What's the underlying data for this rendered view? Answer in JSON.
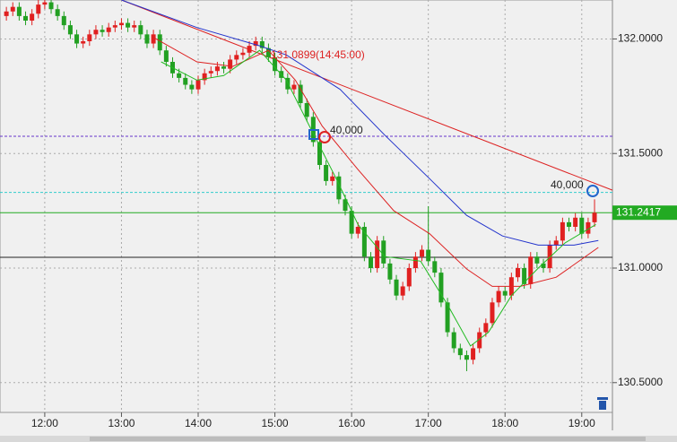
{
  "chart_data": {
    "type": "candlestick",
    "up_color": "#e02020",
    "down_color": "#22a022",
    "xlim": [
      685,
      1164
    ],
    "ylim": [
      130.37,
      132.17
    ],
    "grid": true,
    "xticks": [
      {
        "value": 720,
        "label": "12:00"
      },
      {
        "value": 780,
        "label": "13:00"
      },
      {
        "value": 840,
        "label": "14:00"
      },
      {
        "value": 900,
        "label": "15:00"
      },
      {
        "value": 960,
        "label": "16:00"
      },
      {
        "value": 1020,
        "label": "17:00"
      },
      {
        "value": 1080,
        "label": "18:00"
      },
      {
        "value": 1140,
        "label": "19:00"
      }
    ],
    "yticks": [
      {
        "value": 132,
        "label": "132.0000"
      },
      {
        "value": 131.5,
        "label": "131.5000"
      },
      {
        "value": 131,
        "label": "131.0000"
      },
      {
        "value": 130.5,
        "label": "130.5000"
      }
    ],
    "x": [
      690,
      695,
      700,
      705,
      710,
      715,
      720,
      725,
      730,
      735,
      740,
      745,
      750,
      755,
      760,
      765,
      770,
      775,
      780,
      785,
      790,
      795,
      800,
      805,
      810,
      815,
      820,
      825,
      830,
      835,
      840,
      845,
      850,
      855,
      860,
      865,
      870,
      875,
      880,
      885,
      890,
      895,
      900,
      905,
      910,
      915,
      920,
      925,
      930,
      935,
      940,
      945,
      950,
      955,
      960,
      965,
      970,
      975,
      980,
      985,
      990,
      995,
      1000,
      1005,
      1010,
      1015,
      1020,
      1025,
      1030,
      1035,
      1040,
      1045,
      1050,
      1055,
      1060,
      1065,
      1070,
      1075,
      1080,
      1085,
      1090,
      1095,
      1100,
      1105,
      1110,
      1115,
      1120,
      1125,
      1130,
      1135,
      1140,
      1145,
      1150
    ],
    "open": [
      132.1,
      132.12,
      132.14,
      132.1,
      132.08,
      132.11,
      132.15,
      132.16,
      132.13,
      132.1,
      132.06,
      132.02,
      131.98,
      131.99,
      132.02,
      132.04,
      132.03,
      132.05,
      132.06,
      132.07,
      132.05,
      132.06,
      132.02,
      131.98,
      132.02,
      131.95,
      131.9,
      131.85,
      131.83,
      131.8,
      131.78,
      131.82,
      131.85,
      131.86,
      131.88,
      131.87,
      131.91,
      131.93,
      131.94,
      131.97,
      131.99,
      131.96,
      131.92,
      131.86,
      131.83,
      131.78,
      131.8,
      131.72,
      131.66,
      131.55,
      131.45,
      131.38,
      131.4,
      131.3,
      131.25,
      131.15,
      131.18,
      131.05,
      131.0,
      131.12,
      131.02,
      130.95,
      130.88,
      130.92,
      131.0,
      131.05,
      131.08,
      131.03,
      130.98,
      130.85,
      130.72,
      130.65,
      130.62,
      130.6,
      130.65,
      130.72,
      130.76,
      130.85,
      130.9,
      130.88,
      130.96,
      131.0,
      130.93,
      131.05,
      131.02,
      131.0,
      131.1,
      131.12,
      131.2,
      131.18,
      131.22,
      131.15,
      131.2
    ],
    "high": [
      132.14,
      132.16,
      132.16,
      132.12,
      132.13,
      132.17,
      132.17,
      132.17,
      132.15,
      132.12,
      132.08,
      132.04,
      132.01,
      132.04,
      132.06,
      132.06,
      132.07,
      132.08,
      132.09,
      132.09,
      132.08,
      132.08,
      132.04,
      132.04,
      132.04,
      131.97,
      131.92,
      131.87,
      131.85,
      131.82,
      131.84,
      131.87,
      131.88,
      131.9,
      131.9,
      131.93,
      131.95,
      131.96,
      131.99,
      132.01,
      132.01,
      131.98,
      131.94,
      131.88,
      131.85,
      131.82,
      131.82,
      131.74,
      131.68,
      131.57,
      131.47,
      131.42,
      131.42,
      131.32,
      131.27,
      131.2,
      131.2,
      131.07,
      131.14,
      131.14,
      131.04,
      130.97,
      130.94,
      131.02,
      131.07,
      131.1,
      131.27,
      131.05,
      131.0,
      130.87,
      130.74,
      130.67,
      130.64,
      130.67,
      130.74,
      130.78,
      130.87,
      130.92,
      130.92,
      130.98,
      131.02,
      131.02,
      131.07,
      131.07,
      131.04,
      131.12,
      131.14,
      131.22,
      131.22,
      131.24,
      131.24,
      131.22,
      131.3
    ],
    "low": [
      132.08,
      132.1,
      132.08,
      132.06,
      132.06,
      132.09,
      132.13,
      132.11,
      132.08,
      132.04,
      132.0,
      131.96,
      131.96,
      131.97,
      132.0,
      132.01,
      132.01,
      132.03,
      132.04,
      132.03,
      132.03,
      132.0,
      131.96,
      131.96,
      131.93,
      131.88,
      131.83,
      131.81,
      131.78,
      131.76,
      131.76,
      131.8,
      131.83,
      131.84,
      131.85,
      131.85,
      131.89,
      131.91,
      131.92,
      131.95,
      131.94,
      131.9,
      131.84,
      131.81,
      131.76,
      131.76,
      131.7,
      131.64,
      131.53,
      131.43,
      131.36,
      131.36,
      131.28,
      131.23,
      131.13,
      131.13,
      131.03,
      130.98,
      130.98,
      131.0,
      130.93,
      130.86,
      130.86,
      130.9,
      130.98,
      131.03,
      131.01,
      130.96,
      130.83,
      130.7,
      130.63,
      130.6,
      130.55,
      130.58,
      130.63,
      130.7,
      130.74,
      130.83,
      130.86,
      130.86,
      130.94,
      130.91,
      130.91,
      131.0,
      130.98,
      130.98,
      131.08,
      131.1,
      131.16,
      131.16,
      131.13,
      131.13,
      131.18
    ],
    "close": [
      132.12,
      132.14,
      132.1,
      132.08,
      132.11,
      132.15,
      132.16,
      132.13,
      132.1,
      132.06,
      132.02,
      131.98,
      131.99,
      132.02,
      132.04,
      132.03,
      132.05,
      132.06,
      132.07,
      132.05,
      132.06,
      132.02,
      131.98,
      132.02,
      131.95,
      131.9,
      131.85,
      131.83,
      131.8,
      131.78,
      131.82,
      131.85,
      131.86,
      131.88,
      131.87,
      131.91,
      131.93,
      131.94,
      131.97,
      131.99,
      131.96,
      131.92,
      131.86,
      131.83,
      131.78,
      131.8,
      131.72,
      131.66,
      131.55,
      131.45,
      131.38,
      131.4,
      131.3,
      131.25,
      131.15,
      131.18,
      131.05,
      131.0,
      131.12,
      131.02,
      130.95,
      130.88,
      130.92,
      131.0,
      131.05,
      131.08,
      131.03,
      130.98,
      130.85,
      130.72,
      130.65,
      130.62,
      130.6,
      130.65,
      130.72,
      130.76,
      130.85,
      130.9,
      130.88,
      130.96,
      131.0,
      130.93,
      131.05,
      131.02,
      131.0,
      131.1,
      131.12,
      131.2,
      131.18,
      131.22,
      131.15,
      131.2,
      131.2417
    ],
    "series": [
      {
        "color": "#2233cc",
        "x": [
          780,
          839,
          888,
          909,
          951,
          986,
          1021,
          1050,
          1078,
          1106,
          1134,
          1153
        ],
        "values": [
          132.17,
          132.05,
          131.97,
          131.93,
          131.78,
          131.58,
          131.39,
          131.23,
          131.14,
          131.1,
          131.1,
          131.12
        ]
      },
      {
        "color": "#dd2222",
        "x": [
          804,
          839,
          867,
          895,
          916,
          937,
          965,
          993,
          1021,
          1050,
          1070,
          1092,
          1120,
          1153
        ],
        "values": [
          132.01,
          131.9,
          131.88,
          131.95,
          131.82,
          131.62,
          131.43,
          131.25,
          131.15,
          130.996,
          130.92,
          130.92,
          130.96,
          131.09
        ]
      },
      {
        "color": "#22bb22",
        "x": [
          811,
          839,
          860,
          888,
          909,
          927,
          948,
          965,
          986,
          1014,
          1035,
          1053,
          1067,
          1085,
          1106,
          1127,
          1151
        ],
        "values": [
          131.9,
          131.82,
          131.84,
          131.95,
          131.82,
          131.62,
          131.39,
          131.19,
          131.05,
          131.03,
          130.84,
          130.66,
          130.72,
          130.88,
          131.0,
          131.11,
          131.19
        ]
      }
    ],
    "trendline": {
      "color": "#dd2222",
      "x": [
        780,
        1164
      ],
      "values": [
        132.17,
        131.34
      ]
    },
    "levels": [
      {
        "value": 131.575,
        "color": "#6633cc",
        "dash": true
      },
      {
        "value": 131.33,
        "color": "#33cccc",
        "dash": true
      },
      {
        "value": 131.047,
        "color": "#222222",
        "dash": false
      }
    ],
    "price_line": {
      "value": 131.2417,
      "color": "#22aa22"
    },
    "annotations": [
      "131.0899(14:45:00)",
      "40,000",
      "40,000"
    ]
  }
}
